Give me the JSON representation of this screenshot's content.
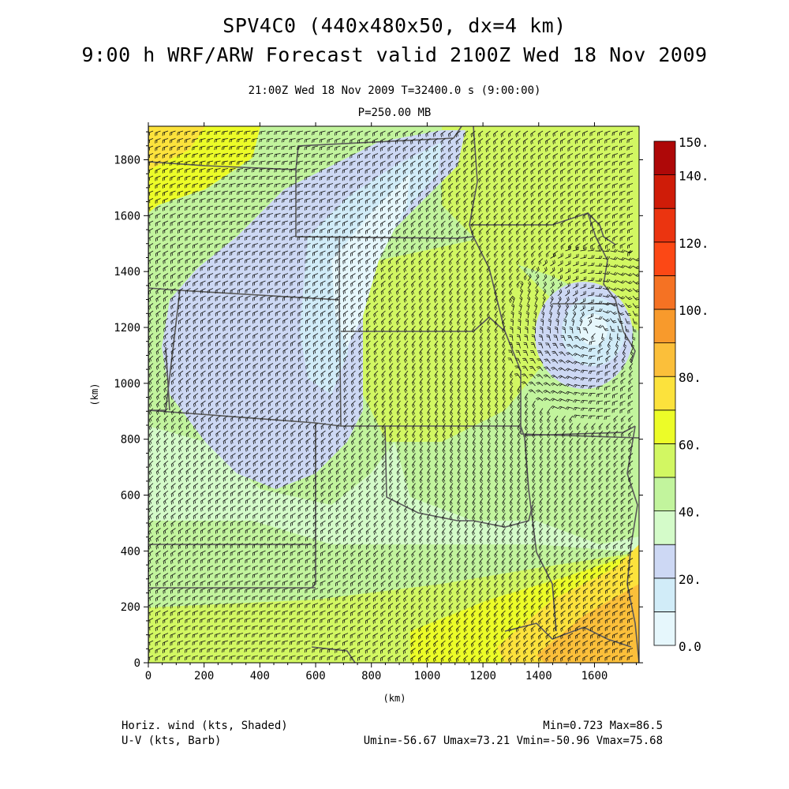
{
  "header": {
    "title_line1": "SPV4C0 (440x480x50, dx=4 km)",
    "title_line2": "9:00 h WRF/ARW Forecast valid 2100Z Wed 18 Nov 2009",
    "valid_time": "21:00Z Wed 18 Nov 2009     T=32400.0 s (9:00:00)",
    "level": "P=250.00 MB"
  },
  "footer": {
    "field1": "Horiz. wind (kts, Shaded)",
    "field2": "U-V (kts, Barb)",
    "stats1": "Min=0.723 Max=86.5",
    "stats2": "Umin=-56.67 Umax=73.21 Vmin=-50.96 Vmax=75.68"
  },
  "chart_data": {
    "type": "heatmap",
    "title": "SPV4C0 (440x480x50, dx=4 km)",
    "subtitle": "9:00 h WRF/ARW Forecast valid 2100Z Wed 18 Nov 2009",
    "xlabel": "(km)",
    "ylabel": "(km)",
    "xlim": [
      0,
      1760
    ],
    "ylim": [
      0,
      1920
    ],
    "xticks": [
      0,
      200,
      400,
      600,
      800,
      1000,
      1200,
      1400,
      1600
    ],
    "yticks": [
      0,
      200,
      400,
      600,
      800,
      1000,
      1200,
      1400,
      1600,
      1800
    ],
    "colorbar": {
      "levels": [
        0,
        10,
        20,
        30,
        40,
        50,
        60,
        70,
        80,
        90,
        100,
        110,
        120,
        130,
        140,
        150
      ],
      "tick_labels": [
        "0.0",
        "20.",
        "40.",
        "60.",
        "80.",
        "100.",
        "120.",
        "140.",
        "150."
      ],
      "colors": [
        "#e6f7fc",
        "#d1ecf8",
        "#cdd8f4",
        "#d4fbc9",
        "#c2f49d",
        "#d2f762",
        "#ecfc28",
        "#fce23c",
        "#fbbf3a",
        "#f89a2c",
        "#f57223",
        "#fc4815",
        "#eb3410",
        "#cf1c08",
        "#ae0808"
      ]
    },
    "field": "Horiz. wind (kts, Shaded)",
    "barbs": "U-V (kts, Barb)",
    "min": 0.723,
    "max": 86.5,
    "umin": -56.67,
    "umax": 73.21,
    "vmin": -50.96,
    "vmax": 75.68
  }
}
